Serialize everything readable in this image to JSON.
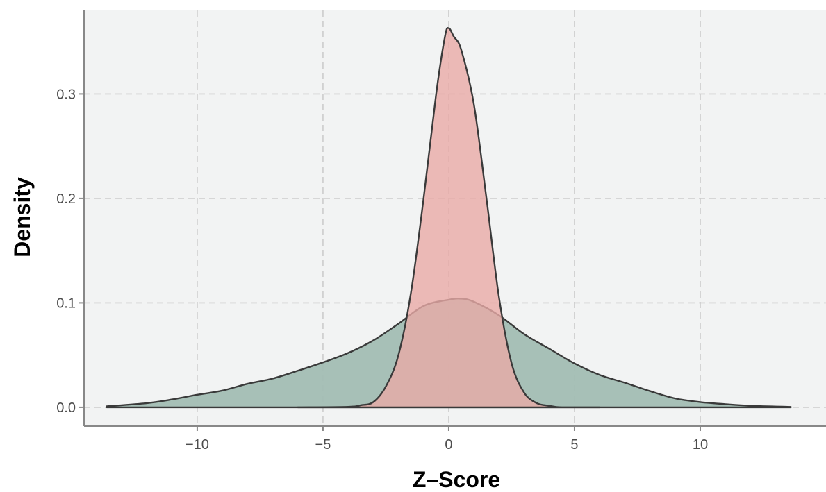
{
  "colors": {
    "panel_background": "#f2f3f3",
    "wide_fill": "#a2bdb3",
    "narrow_fill": "#e8aaa6",
    "outline": "#3a3a3a",
    "grid": "#cccccc"
  },
  "chart_data": {
    "type": "area",
    "title": "",
    "xlabel": "Z–Score",
    "ylabel": "Density",
    "xlim": [
      -14.5,
      15
    ],
    "ylim": [
      -0.018,
      0.38
    ],
    "x_ticks": [
      -10,
      -5,
      0,
      5,
      10
    ],
    "x_tick_labels": [
      "−10",
      "−5",
      "0",
      "5",
      "10"
    ],
    "y_ticks": [
      0.0,
      0.1,
      0.2,
      0.3
    ],
    "y_tick_labels": [
      "0.0",
      "0.1",
      "0.2",
      "0.3"
    ],
    "grid": true,
    "legend": "none",
    "series": [
      {
        "fill": "#a2bdb3",
        "points": [
          [
            -13.6,
            0.001
          ],
          [
            -12,
            0.004
          ],
          [
            -11,
            0.0075
          ],
          [
            -10,
            0.012
          ],
          [
            -9,
            0.016
          ],
          [
            -8,
            0.0225
          ],
          [
            -7,
            0.0275
          ],
          [
            -6,
            0.035
          ],
          [
            -5,
            0.043
          ],
          [
            -4,
            0.052
          ],
          [
            -3,
            0.064
          ],
          [
            -2,
            0.08
          ],
          [
            -1,
            0.097
          ],
          [
            0,
            0.103
          ],
          [
            0.5,
            0.104
          ],
          [
            1,
            0.101
          ],
          [
            2,
            0.088
          ],
          [
            3,
            0.07
          ],
          [
            4,
            0.056
          ],
          [
            5,
            0.042
          ],
          [
            6,
            0.031
          ],
          [
            7,
            0.0235
          ],
          [
            8,
            0.0155
          ],
          [
            9,
            0.0085
          ],
          [
            10,
            0.005
          ],
          [
            11,
            0.003
          ],
          [
            12,
            0.0015
          ],
          [
            13.6,
            0.0004
          ]
        ]
      },
      {
        "fill": "#e8aaa6",
        "points": [
          [
            -6,
            0.0
          ],
          [
            -4,
            0.0005
          ],
          [
            -3.5,
            0.002
          ],
          [
            -3,
            0.005
          ],
          [
            -2.5,
            0.02
          ],
          [
            -2,
            0.05
          ],
          [
            -1.5,
            0.11
          ],
          [
            -1,
            0.2
          ],
          [
            -0.5,
            0.3
          ],
          [
            -0.15,
            0.355
          ],
          [
            0,
            0.363
          ],
          [
            0.2,
            0.355
          ],
          [
            0.5,
            0.342
          ],
          [
            1,
            0.29
          ],
          [
            1.5,
            0.2
          ],
          [
            2,
            0.105
          ],
          [
            2.5,
            0.042
          ],
          [
            3,
            0.014
          ],
          [
            3.5,
            0.004
          ],
          [
            4,
            0.0015
          ],
          [
            4.5,
            0.0
          ],
          [
            6,
            0.0
          ]
        ]
      }
    ]
  }
}
